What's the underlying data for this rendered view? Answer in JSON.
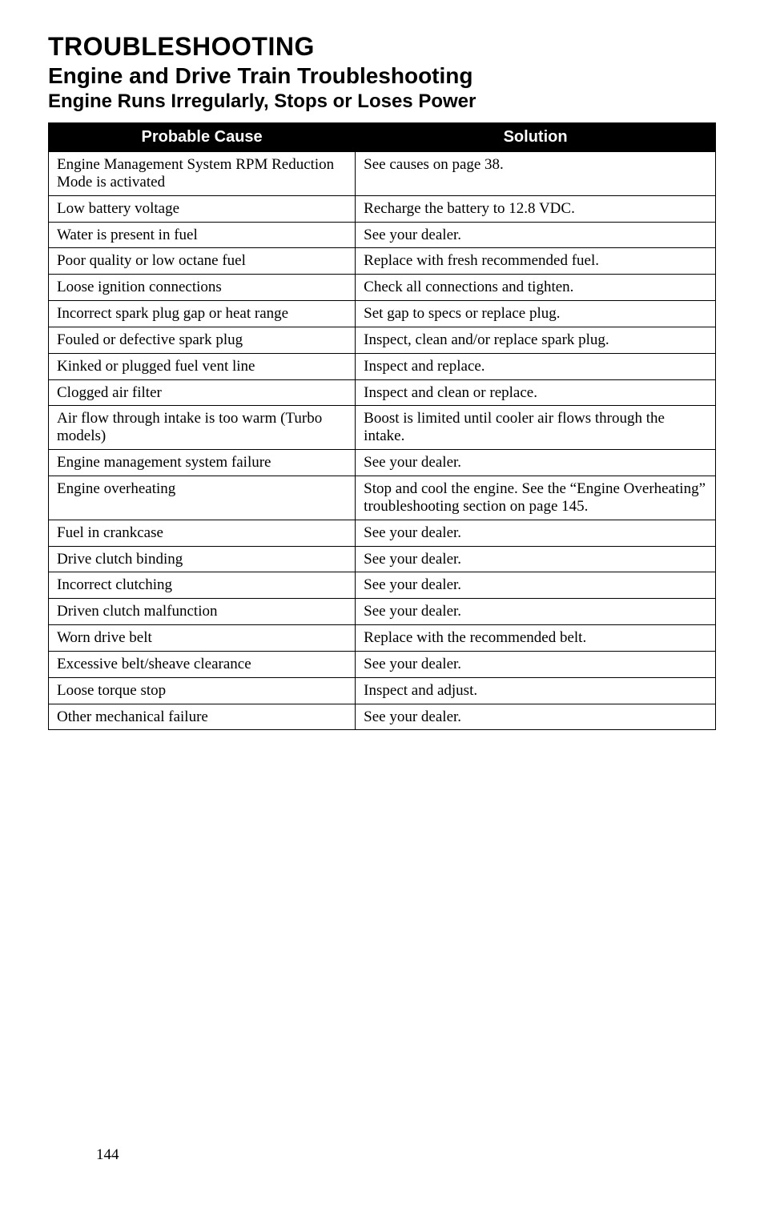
{
  "headings": {
    "main": "TROUBLESHOOTING",
    "section": "Engine and Drive Train Troubleshooting",
    "subsection": "Engine Runs Irregularly, Stops or Loses Power"
  },
  "table": {
    "headers": {
      "cause": "Probable Cause",
      "solution": "Solution"
    },
    "rows": [
      {
        "cause": "Engine Management System RPM Reduction Mode is activated",
        "solution": "See causes on page 38."
      },
      {
        "cause": "Low battery voltage",
        "solution": "Recharge the battery to 12.8 VDC."
      },
      {
        "cause": "Water is present in fuel",
        "solution": "See your dealer."
      },
      {
        "cause": "Poor quality or low octane fuel",
        "solution": "Replace with fresh recommended fuel."
      },
      {
        "cause": "Loose ignition connections",
        "solution": "Check all connections and tighten."
      },
      {
        "cause": "Incorrect spark plug gap or heat range",
        "solution": "Set gap to specs or replace plug."
      },
      {
        "cause": "Fouled or defective spark plug",
        "solution": "Inspect, clean and/or replace spark plug."
      },
      {
        "cause": "Kinked or plugged fuel vent line",
        "solution": "Inspect and replace."
      },
      {
        "cause": "Clogged air filter",
        "solution": "Inspect and clean or replace."
      },
      {
        "cause": "Air flow through intake is too warm (Turbo models)",
        "solution": "Boost is limited until cooler air flows through the intake."
      },
      {
        "cause": "Engine management system failure",
        "solution": "See your dealer."
      },
      {
        "cause": "Engine overheating",
        "solution": "Stop and cool the engine. See the “Engine Overheating” troubleshooting section on page 145."
      },
      {
        "cause": "Fuel in crankcase",
        "solution": "See your dealer."
      },
      {
        "cause": "Drive clutch binding",
        "solution": "See your dealer."
      },
      {
        "cause": "Incorrect clutching",
        "solution": "See your dealer."
      },
      {
        "cause": "Driven clutch malfunction",
        "solution": "See your dealer."
      },
      {
        "cause": "Worn drive belt",
        "solution": "Replace with the recommended belt."
      },
      {
        "cause": "Excessive belt/sheave clearance",
        "solution": "See your dealer."
      },
      {
        "cause": "Loose torque stop",
        "solution": "Inspect and adjust."
      },
      {
        "cause": "Other mechanical failure",
        "solution": "See your dealer."
      }
    ]
  },
  "page_number": "144",
  "style": {
    "body_font": "Times New Roman",
    "heading_font": "Arial",
    "heading_color": "#000000",
    "table_header_bg": "#000000",
    "table_header_fg": "#ffffff",
    "table_border_color": "#000000",
    "cell_font_size_pt": 14,
    "header_font_size_pt": 15,
    "main_title_pt": 24,
    "sub_title_pt": 21,
    "subsub_title_pt": 18
  }
}
